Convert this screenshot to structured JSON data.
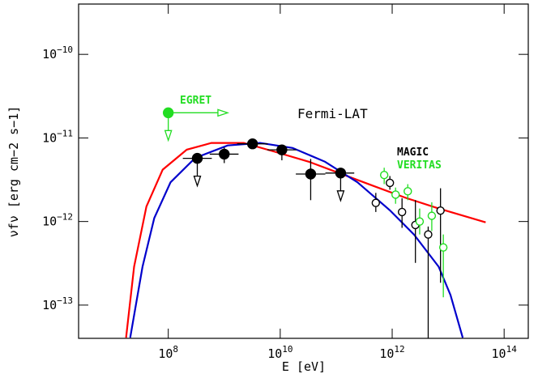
{
  "chart_data": {
    "type": "scatter",
    "xlabel": "E [eV]",
    "ylabel": "νfν [erg cm−2 s−1]",
    "log_x": true,
    "log_y": true,
    "xlim": [
      2500000.0,
      270000000000000.0
    ],
    "ylim": [
      4e-14,
      4e-10
    ],
    "xticks": [
      {
        "value": 100000000.0,
        "label": "108"
      },
      {
        "value": 10000000000.0,
        "label": "1010"
      },
      {
        "value": 1000000000000.0,
        "label": "1012"
      },
      {
        "value": 100000000000000.0,
        "label": "1014"
      }
    ],
    "yticks": [
      {
        "value": 1e-13,
        "label": "10−13"
      },
      {
        "value": 1e-12,
        "label": "10−12"
      },
      {
        "value": 1e-11,
        "label": "10−11"
      },
      {
        "value": 1e-10,
        "label": "10−10"
      }
    ],
    "series": [
      {
        "name": "Fermi-LAT",
        "color": "#000000",
        "marker": "filled",
        "x": [
          330000000.0,
          1000000000.0,
          3200000000.0,
          10700000000.0,
          35000000000.0,
          120000000000.0
        ],
        "values": [
          5.7e-12,
          6.4e-12,
          8.5e-12,
          7.2e-12,
          3.7e-12,
          3.8e-12
        ],
        "x_low": [
          182000000.0,
          550000000.0,
          1700000000.0,
          5900000000.0,
          19000000000.0,
          64000000000.0
        ],
        "x_high": [
          600000000.0,
          1800000000.0,
          6000000000.0,
          19500000000.0,
          64000000000.0,
          210000000000.0
        ],
        "y_low": [
          null,
          5e-12,
          7.4e-12,
          5.4e-12,
          1.8e-12,
          null
        ],
        "y_high": [
          null,
          7.7e-12,
          9.7e-12,
          8.1e-12,
          5.6e-12,
          null
        ],
        "upper_limit": [
          true,
          false,
          false,
          false,
          false,
          true
        ]
      },
      {
        "name": "EGRET",
        "color": "#22dd22",
        "marker": "filled",
        "x": [
          100000000.0
        ],
        "values": [
          2e-11
        ],
        "x_high": [
          1150000000.0
        ],
        "upper_limit": [
          true
        ]
      },
      {
        "name": "MAGIC",
        "color": "#000000",
        "marker": "open",
        "x": [
          510000000000.0,
          910000000000.0,
          1500000000000.0,
          2600000000000.0,
          4400000000000.0,
          7300000000000.0
        ],
        "values": [
          1.67e-12,
          2.9e-12,
          1.3e-12,
          9.1e-13,
          7e-13,
          1.35e-12
        ],
        "y_low": [
          1.3e-12,
          2.4e-12,
          8.4e-13,
          3.2e-13,
          4e-14,
          1.85e-13
        ],
        "y_high": [
          2.2e-12,
          3.5e-12,
          1.9e-12,
          1.8e-12,
          8.7e-13,
          2.5e-12
        ]
      },
      {
        "name": "VERITAS",
        "color": "#22dd22",
        "marker": "open",
        "x": [
          720000000000.0,
          1150000000000.0,
          1900000000000.0,
          3100000000000.0,
          5100000000000.0,
          8200000000000.0
        ],
        "values": [
          3.6e-12,
          2.1e-12,
          2.3e-12,
          1e-12,
          1.17e-12,
          4.9e-13
        ],
        "y_low": [
          2.8e-12,
          1.63e-12,
          1.8e-12,
          7e-13,
          7.7e-13,
          1.24e-13
        ],
        "y_high": [
          4.4e-12,
          2.55e-12,
          2.8e-12,
          1.43e-12,
          1.7e-12,
          7e-13
        ]
      }
    ],
    "models": [
      {
        "color": "#ff0000",
        "x": [
          17600000.0,
          24500000.0,
          40700000.0,
          79400000.0,
          214000000.0,
          589000000.0,
          2240000000.0,
          8510000000.0,
          32400000000.0,
          123000000000.0,
          468000000000.0,
          1780000000000.0,
          6760000000000.0,
          46800000000000.0
        ],
        "values": [
          4.07e-14,
          2.88e-13,
          1.51e-12,
          4.17e-12,
          7.24e-12,
          8.71e-12,
          8.71e-12,
          6.76e-12,
          5.19e-12,
          3.72e-12,
          2.66e-12,
          1.91e-12,
          1.43e-12,
          9.77e-13
        ]
      },
      {
        "color": "#0000cc",
        "x": [
          20900000.0,
          34700000.0,
          56200000.0,
          110000000.0,
          302000000.0,
          1150000000.0,
          4370000000.0,
          16600000000.0,
          63100000000.0,
          240000000000.0,
          912000000000.0,
          2450000000000.0,
          6760000000000.0,
          11000000000000.0,
          18200000000000.0
        ],
        "values": [
          4.07e-14,
          2.88e-13,
          1.1e-12,
          2.95e-12,
          5.75e-12,
          8.13e-12,
          8.71e-12,
          7.59e-12,
          5.19e-12,
          2.95e-12,
          1.36e-12,
          7e-13,
          2.88e-13,
          1.32e-13,
          4.07e-14
        ]
      }
    ]
  }
}
